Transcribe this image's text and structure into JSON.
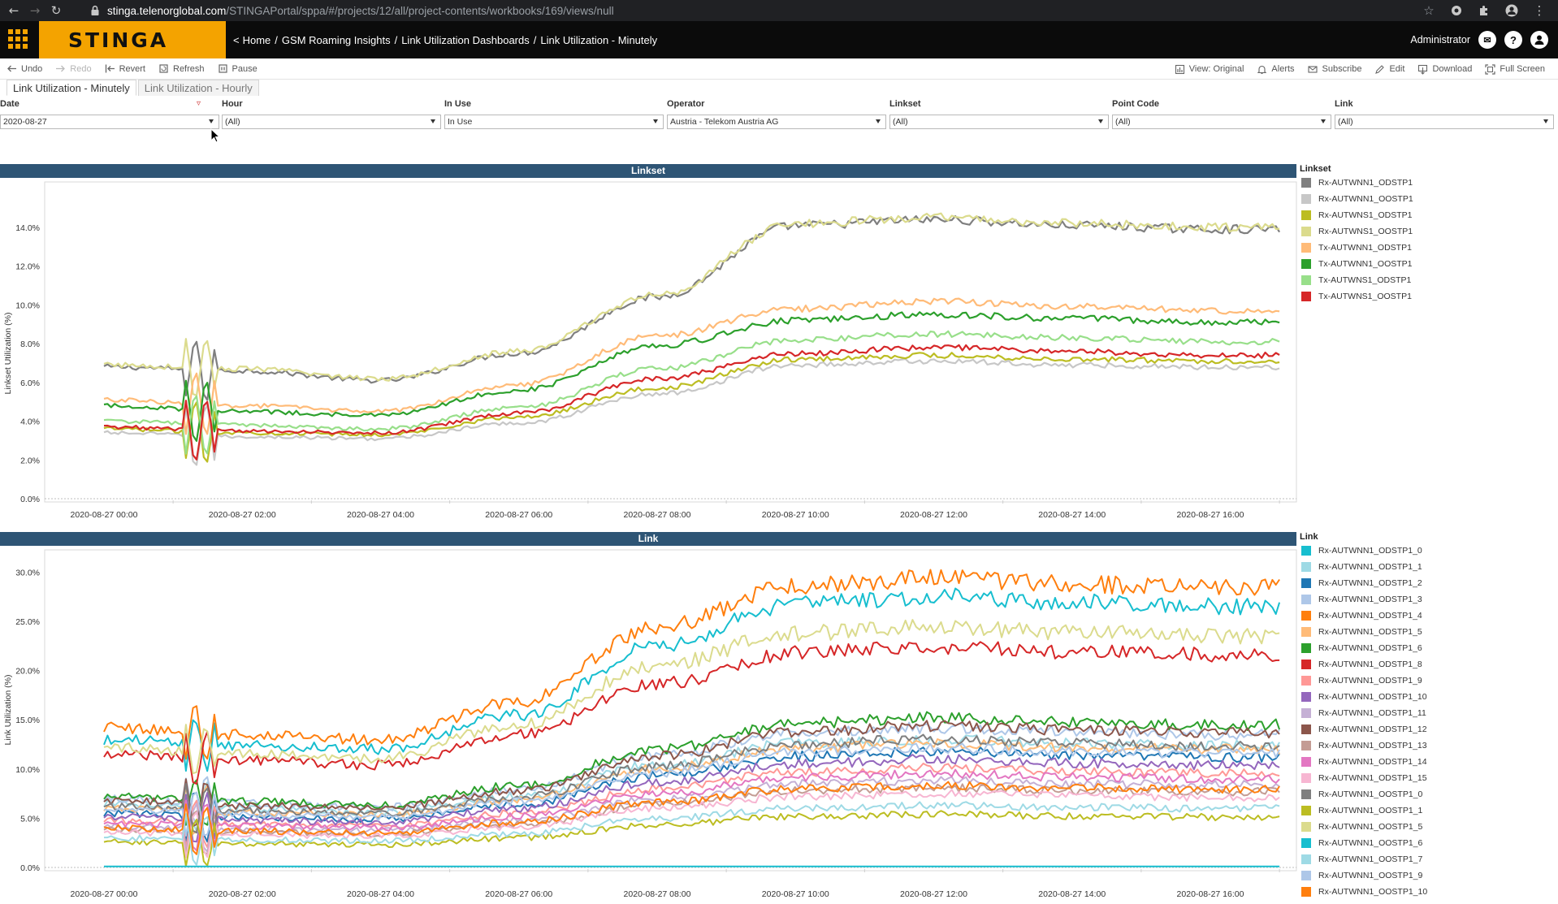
{
  "browser": {
    "url_host": "stinga.telenorglobal.com",
    "url_path": "/STINGAPortal/sppa/#/projects/12/all/project-contents/workbooks/169/views/null",
    "icons": [
      "back-icon",
      "forward-icon",
      "reload-icon",
      "lock-icon",
      "star-icon",
      "extension-icon",
      "puzzle-icon",
      "profile-icon",
      "menu-icon"
    ]
  },
  "app": {
    "logo": "STINGA",
    "breadcrumb_prefix": "<",
    "breadcrumbs": [
      "Home",
      "GSM Roaming Insights",
      "Link Utilization Dashboards",
      "Link Utilization - Minutely"
    ],
    "user": "Administrator",
    "accent": "#f4a300"
  },
  "toolbar": {
    "left": [
      {
        "label": "Undo",
        "icon": "undo-icon",
        "disabled": false
      },
      {
        "label": "Redo",
        "icon": "redo-icon",
        "disabled": true
      },
      {
        "label": "Revert",
        "icon": "revert-icon",
        "disabled": false
      },
      {
        "label": "Refresh",
        "icon": "refresh-icon",
        "disabled": false
      },
      {
        "label": "Pause",
        "icon": "pause-icon",
        "disabled": false
      }
    ],
    "right": [
      {
        "label": "View: Original",
        "icon": "view-icon"
      },
      {
        "label": "Alerts",
        "icon": "bell-icon"
      },
      {
        "label": "Subscribe",
        "icon": "mail-icon"
      },
      {
        "label": "Edit",
        "icon": "pencil-icon"
      },
      {
        "label": "Download",
        "icon": "download-icon"
      },
      {
        "label": "Full Screen",
        "icon": "fullscreen-icon"
      }
    ]
  },
  "tabs": [
    {
      "label": "Link Utilization - Minutely",
      "active": true
    },
    {
      "label": "Link Utilization - Hourly",
      "active": false
    }
  ],
  "filters": [
    {
      "label": "Date",
      "value": "2020-08-27"
    },
    {
      "label": "Hour",
      "value": "(All)"
    },
    {
      "label": "In Use",
      "value": "In Use"
    },
    {
      "label": "Operator",
      "value": "Austria - Telekom Austria AG"
    },
    {
      "label": "Linkset",
      "value": "(All)"
    },
    {
      "label": "Point Code",
      "value": "(All)"
    },
    {
      "label": "Link",
      "value": "(All)"
    }
  ],
  "chart_data": [
    {
      "type": "line",
      "title": "Linkset",
      "ylabel": "Linkset Utilization (%)",
      "xlabel": "",
      "ylim": [
        0,
        15
      ],
      "yticks": [
        "0.0%",
        "2.0%",
        "4.0%",
        "6.0%",
        "8.0%",
        "10.0%",
        "12.0%",
        "14.0%"
      ],
      "x": [
        "2020-08-27 00:00",
        "2020-08-27 02:00",
        "2020-08-27 04:00",
        "2020-08-27 06:00",
        "2020-08-27 08:00",
        "2020-08-27 10:00",
        "2020-08-27 12:00",
        "2020-08-27 14:00",
        "2020-08-27 16:00"
      ],
      "grid": false,
      "legend_title": "Linkset",
      "legend_position": "right",
      "series": [
        {
          "name": "Rx-AUTWNN1_ODSTP1",
          "color": "#7f7f7f",
          "values": [
            6.8,
            6.6,
            6.1,
            7.5,
            10.4,
            14.1,
            14.4,
            14.1,
            13.9
          ]
        },
        {
          "name": "Rx-AUTWNN1_OOSTP1",
          "color": "#c7c7c7",
          "values": [
            3.4,
            3.2,
            3.1,
            3.9,
            5.4,
            6.9,
            7.1,
            6.9,
            6.8
          ]
        },
        {
          "name": "Rx-AUTWNS1_ODSTP1",
          "color": "#bcbd22",
          "values": [
            3.6,
            3.4,
            3.3,
            4.2,
            5.7,
            7.2,
            7.4,
            7.2,
            7.1
          ]
        },
        {
          "name": "Rx-AUTWNS1_OOSTP1",
          "color": "#dbdb8d",
          "values": [
            6.9,
            6.7,
            6.2,
            7.6,
            10.5,
            14.2,
            14.5,
            14.2,
            14.0
          ]
        },
        {
          "name": "Tx-AUTWNN1_ODSTP1",
          "color": "#ffbb78",
          "values": [
            5.1,
            4.8,
            4.5,
            5.9,
            8.4,
            9.8,
            10.2,
            9.9,
            9.7
          ]
        },
        {
          "name": "Tx-AUTWNN1_OOSTP1",
          "color": "#2ca02c",
          "values": [
            4.8,
            4.5,
            4.3,
            5.6,
            7.9,
            9.2,
            9.5,
            9.3,
            9.1
          ]
        },
        {
          "name": "Tx-AUTWNS1_ODSTP1",
          "color": "#98df8a",
          "values": [
            4.0,
            3.8,
            3.6,
            4.7,
            6.7,
            8.2,
            8.5,
            8.3,
            8.1
          ]
        },
        {
          "name": "Tx-AUTWNS1_OOSTP1",
          "color": "#d62728",
          "values": [
            3.7,
            3.5,
            3.4,
            4.4,
            6.2,
            7.5,
            7.8,
            7.6,
            7.4
          ]
        }
      ]
    },
    {
      "type": "line",
      "title": "Link",
      "ylabel": "Link Utilization (%)",
      "xlabel": "",
      "ylim": [
        0,
        32
      ],
      "yticks": [
        "0.0%",
        "5.0%",
        "10.0%",
        "15.0%",
        "20.0%",
        "25.0%",
        "30.0%"
      ],
      "x": [
        "2020-08-27 00:00",
        "2020-08-27 02:00",
        "2020-08-27 04:00",
        "2020-08-27 06:00",
        "2020-08-27 08:00",
        "2020-08-27 10:00",
        "2020-08-27 12:00",
        "2020-08-27 14:00",
        "2020-08-27 16:00"
      ],
      "grid": false,
      "legend_title": "Link",
      "legend_position": "right",
      "series": [
        {
          "name": "Rx-AUTWNN1_ODSTP1_0",
          "color": "#17becf",
          "values": [
            13.0,
            12.4,
            12.0,
            15.5,
            22.5,
            26.8,
            27.5,
            27.0,
            26.5
          ]
        },
        {
          "name": "Rx-AUTWNN1_ODSTP1_1",
          "color": "#9edae5",
          "values": [
            6.5,
            6.0,
            5.6,
            7.2,
            10.4,
            12.6,
            13.0,
            12.6,
            12.4
          ]
        },
        {
          "name": "Rx-AUTWNN1_ODSTP1_2",
          "color": "#1f77b4",
          "values": [
            5.5,
            5.1,
            4.9,
            6.4,
            9.3,
            11.3,
            11.8,
            11.4,
            11.2
          ]
        },
        {
          "name": "Rx-AUTWNN1_ODSTP1_3",
          "color": "#aec7e8",
          "values": [
            7.0,
            6.5,
            6.1,
            7.9,
            11.4,
            13.7,
            14.2,
            13.8,
            13.5
          ]
        },
        {
          "name": "Rx-AUTWNN1_ODSTP1_4",
          "color": "#ff7f0e",
          "values": [
            14.2,
            13.5,
            13.0,
            16.8,
            24.4,
            28.6,
            29.4,
            28.8,
            28.4
          ]
        },
        {
          "name": "Rx-AUTWNN1_ODSTP1_5",
          "color": "#ffbb78",
          "values": [
            6.0,
            5.6,
            5.3,
            6.9,
            10.0,
            12.1,
            12.6,
            12.2,
            12.0
          ]
        },
        {
          "name": "Rx-AUTWNN1_ODSTP1_6",
          "color": "#2ca02c",
          "values": [
            7.2,
            6.7,
            6.3,
            8.3,
            12.0,
            14.6,
            15.2,
            14.8,
            14.5
          ]
        },
        {
          "name": "Rx-AUTWNN1_ODSTP1_8",
          "color": "#d62728",
          "values": [
            11.5,
            10.9,
            10.4,
            13.5,
            18.6,
            21.8,
            22.4,
            21.9,
            21.6
          ]
        },
        {
          "name": "Rx-AUTWNN1_ODSTP1_9",
          "color": "#ff9896",
          "values": [
            4.8,
            4.4,
            4.2,
            5.5,
            8.0,
            9.7,
            10.1,
            9.8,
            9.6
          ]
        },
        {
          "name": "Rx-AUTWNN1_ODSTP1_10",
          "color": "#9467bd",
          "values": [
            5.2,
            4.8,
            4.6,
            6.0,
            8.7,
            10.5,
            11.0,
            10.6,
            10.4
          ]
        },
        {
          "name": "Rx-AUTWNN1_ODSTP1_11",
          "color": "#c5b0d5",
          "values": [
            4.2,
            3.9,
            3.7,
            4.8,
            7.0,
            8.5,
            8.8,
            8.5,
            8.4
          ]
        },
        {
          "name": "Rx-AUTWNN1_ODSTP1_12",
          "color": "#8c564b",
          "values": [
            6.8,
            6.3,
            6.0,
            7.8,
            11.3,
            13.8,
            14.4,
            14.0,
            13.7
          ]
        },
        {
          "name": "Rx-AUTWNN1_ODSTP1_13",
          "color": "#c49c94",
          "values": [
            3.9,
            3.6,
            3.4,
            4.4,
            6.4,
            7.8,
            8.1,
            7.8,
            7.7
          ]
        },
        {
          "name": "Rx-AUTWNN1_ODSTP1_14",
          "color": "#e377c2",
          "values": [
            4.5,
            4.2,
            4.0,
            5.2,
            7.5,
            9.1,
            9.5,
            9.2,
            9.0
          ]
        },
        {
          "name": "Rx-AUTWNN1_ODSTP1_15",
          "color": "#f7b6d2",
          "values": [
            3.6,
            3.3,
            3.2,
            4.1,
            6.0,
            7.2,
            7.5,
            7.3,
            7.1
          ]
        },
        {
          "name": "Rx-AUTWNN1_OOSTP1_0",
          "color": "#7f7f7f",
          "values": [
            6.2,
            5.8,
            5.5,
            7.1,
            10.3,
            12.5,
            13.0,
            12.6,
            12.3
          ]
        },
        {
          "name": "Rx-AUTWNN1_OOSTP1_1",
          "color": "#bcbd22",
          "values": [
            2.6,
            2.4,
            2.3,
            3.0,
            4.3,
            5.2,
            5.4,
            5.2,
            5.1
          ]
        },
        {
          "name": "Rx-AUTWNN1_OOSTP1_5",
          "color": "#dbdb8d",
          "values": [
            12.2,
            11.6,
            11.1,
            14.5,
            20.5,
            23.8,
            24.4,
            23.9,
            23.5
          ]
        },
        {
          "name": "Rx-AUTWNN1_OOSTP1_6",
          "color": "#17becf",
          "values": [
            0.1,
            0.1,
            0.1,
            0.1,
            0.1,
            0.1,
            0.1,
            0.1,
            0.1
          ]
        },
        {
          "name": "Rx-AUTWNN1_OOSTP1_7",
          "color": "#9edae5",
          "values": [
            3.0,
            2.8,
            2.7,
            3.4,
            5.0,
            6.0,
            6.3,
            6.1,
            6.0
          ]
        },
        {
          "name": "Rx-AUTWNN1_OOSTP1_9",
          "color": "#aec7e8",
          "values": [
            5.8,
            5.4,
            5.1,
            6.7,
            9.6,
            11.7,
            12.1,
            11.8,
            11.6
          ]
        },
        {
          "name": "Rx-AUTWNN1_OOSTP1_10",
          "color": "#ff7f0e",
          "values": [
            4.0,
            3.7,
            3.5,
            4.6,
            6.6,
            8.0,
            8.3,
            8.1,
            7.9
          ]
        }
      ]
    }
  ]
}
